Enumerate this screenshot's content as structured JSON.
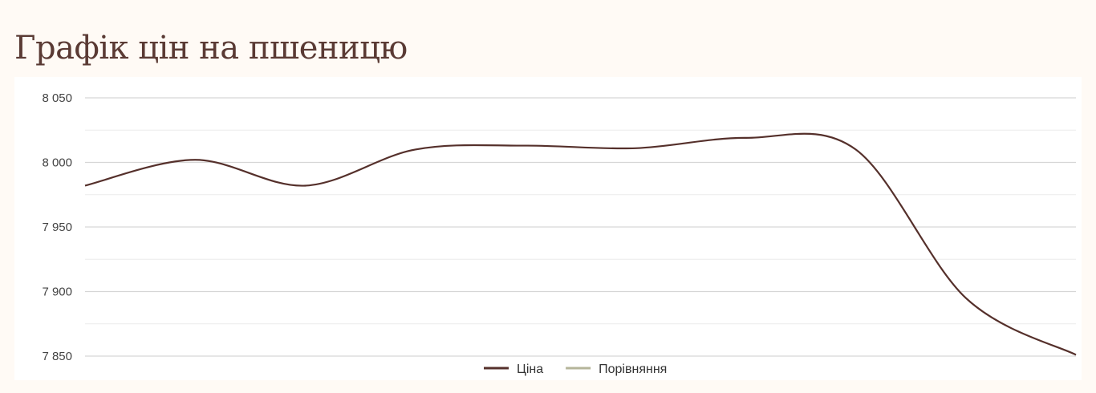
{
  "page": {
    "title": "Графік цін на пшеницю"
  },
  "colors": {
    "background": "#fffaf5",
    "title": "#5a3a34",
    "price_line": "#55302b",
    "comparison_line": "#b5b59a",
    "grid_major": "#d6d6d6",
    "grid_minor": "#ececec"
  },
  "chart_data": {
    "type": "line",
    "title": "",
    "xlabel": "",
    "ylabel": "",
    "ylim": [
      7850,
      8050
    ],
    "yticks": [
      {
        "value": 8050,
        "label": "8 050"
      },
      {
        "value": 8000,
        "label": "8 000"
      },
      {
        "value": 7950,
        "label": "7 950"
      },
      {
        "value": 7900,
        "label": "7 900"
      },
      {
        "value": 7850,
        "label": "7 850"
      }
    ],
    "grid": true,
    "smooth": true,
    "legend": {
      "placement": "bottom-center"
    },
    "series": [
      {
        "name": "Ціна",
        "color": "#55302b",
        "values": [
          7982,
          8002,
          7982,
          8010,
          8013,
          8011,
          8019,
          8010,
          7895,
          7851
        ]
      },
      {
        "name": "Порівняння",
        "color": "#b5b59a",
        "values": []
      }
    ]
  }
}
